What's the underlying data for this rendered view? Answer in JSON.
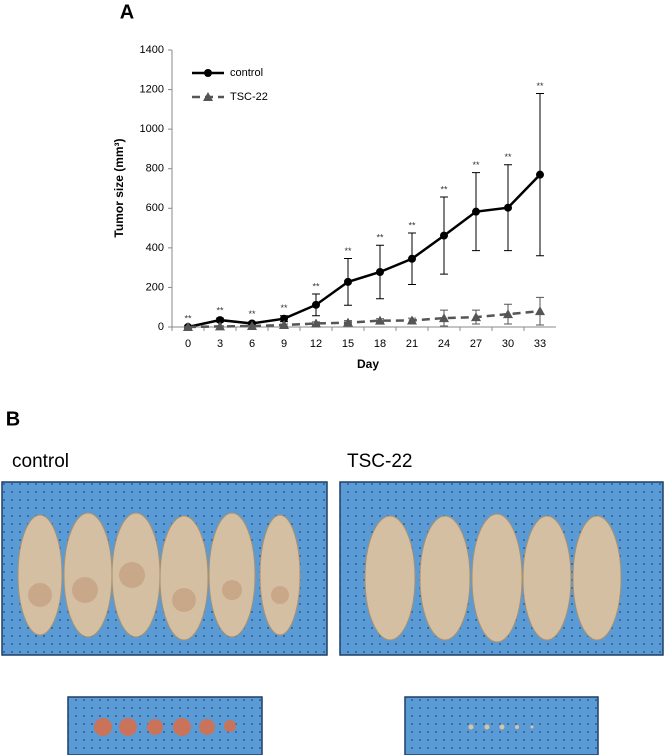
{
  "chart_data": {
    "type": "line",
    "panel_label": "A",
    "x_label": "Day",
    "y_label": "Tumor size (mm³)",
    "categories": [
      "0",
      "3",
      "6",
      "9",
      "12",
      "15",
      "18",
      "21",
      "24",
      "27",
      "30",
      "33"
    ],
    "series": [
      {
        "name": "control",
        "color": "#000000",
        "marker": "circle",
        "dashed": false,
        "values": [
          0,
          35,
          18,
          42,
          112,
          228,
          278,
          345,
          462,
          583,
          603,
          770
        ],
        "errors": [
          5,
          10,
          8,
          15,
          55,
          118,
          135,
          130,
          195,
          197,
          217,
          410
        ]
      },
      {
        "name": "TSC-22",
        "color": "#555555",
        "marker": "triangle",
        "dashed": true,
        "values": [
          0,
          3,
          5,
          10,
          18,
          22,
          32,
          33,
          45,
          50,
          65,
          80
        ],
        "errors": [
          2,
          3,
          3,
          5,
          8,
          10,
          10,
          12,
          40,
          35,
          50,
          70
        ]
      }
    ],
    "significance_labels": [
      "**",
      "**",
      "**",
      "**",
      "**",
      "**",
      "**",
      "**",
      "**",
      "**",
      "**",
      "**"
    ],
    "ylim": [
      0,
      1400
    ],
    "yticks": [
      0,
      200,
      400,
      600,
      800,
      1000,
      1200,
      1400
    ],
    "grid": false,
    "legend": "top-left"
  },
  "panel_b": {
    "panel_label": "B",
    "left_label": "control",
    "right_label": "TSC-22"
  }
}
